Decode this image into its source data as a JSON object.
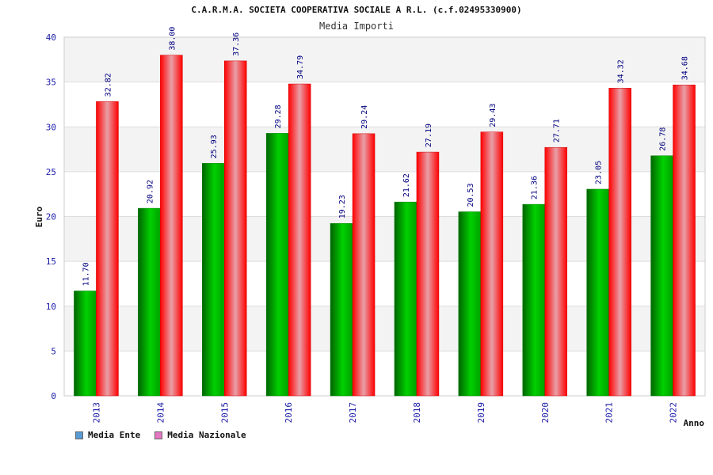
{
  "chart_data": {
    "type": "bar",
    "title": "C.A.R.M.A. SOCIETA COOPERATIVA SOCIALE A R.L. (c.f.02495330900)",
    "subtitle": "Media Importi",
    "xlabel": "Anno",
    "ylabel": "Euro",
    "ylim": [
      0,
      40
    ],
    "yticks": [
      0,
      5,
      10,
      15,
      20,
      25,
      30,
      35,
      40
    ],
    "categories": [
      "2013",
      "2014",
      "2015",
      "2016",
      "2017",
      "2018",
      "2019",
      "2020",
      "2021",
      "2022"
    ],
    "series": [
      {
        "name": "Media Ente",
        "color": "#00b000",
        "values": [
          11.7,
          20.92,
          25.93,
          29.28,
          19.23,
          21.62,
          20.53,
          21.36,
          23.05,
          26.78
        ],
        "labels": [
          "11.70",
          "20.92",
          "25.93",
          "29.28",
          "19.23",
          "21.62",
          "20.53",
          "21.36",
          "23.05",
          "26.78"
        ]
      },
      {
        "name": "Media Nazionale",
        "color": "#ff0000",
        "values": [
          32.82,
          38.0,
          37.36,
          34.79,
          29.24,
          27.19,
          29.43,
          27.71,
          34.32,
          34.68
        ],
        "labels": [
          "32.82",
          "38.00",
          "37.36",
          "34.79",
          "29.24",
          "27.19",
          "29.43",
          "27.71",
          "34.32",
          "34.68"
        ]
      }
    ],
    "legend": {
      "position": "bottom-left",
      "items": [
        {
          "label": "Media Ente",
          "swatch_color": "#5b9bd5"
        },
        {
          "label": "Media Nazionale",
          "swatch_color": "#e377c2"
        }
      ]
    },
    "grid": true
  }
}
